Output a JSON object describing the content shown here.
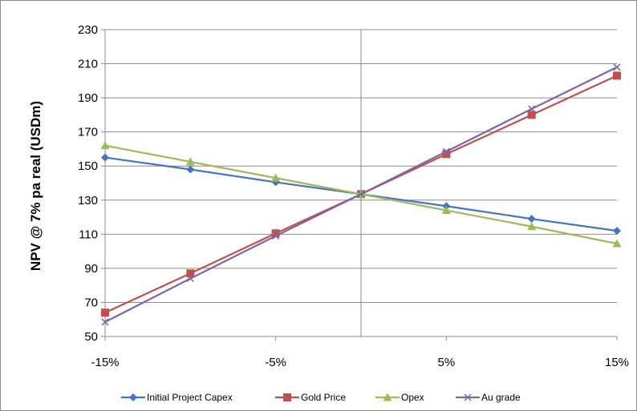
{
  "chart_data": {
    "type": "line",
    "title": "",
    "xlabel": "",
    "ylabel": "NPV @ 7% pa  real (USDm)",
    "x": [
      -15,
      -10,
      -5,
      0,
      5,
      10,
      15
    ],
    "x_tick_labels": [
      "-15%",
      "-5%",
      "5%",
      "15%"
    ],
    "x_tick_values": [
      -15,
      -5,
      5,
      15
    ],
    "xlim": [
      -15,
      15
    ],
    "ylim": [
      50,
      230
    ],
    "y_ticks": [
      50,
      70,
      90,
      110,
      130,
      150,
      170,
      190,
      210,
      230
    ],
    "grid": "horizontal",
    "legend_position": "bottom",
    "series": [
      {
        "name": "Initial Project Capex",
        "color": "#4472C4",
        "marker": "diamond",
        "values": [
          155,
          148,
          140.5,
          133.5,
          126.5,
          119,
          112
        ]
      },
      {
        "name": "Gold Price",
        "color": "#C0504D",
        "marker": "square",
        "values": [
          64,
          87,
          110.5,
          133.5,
          157,
          180,
          203
        ]
      },
      {
        "name": "Opex",
        "color": "#9BBB59",
        "marker": "triangle",
        "values": [
          162,
          152.5,
          143,
          133.5,
          124,
          114.5,
          104.5
        ]
      },
      {
        "name": "Au grade",
        "color": "#8064A2",
        "marker": "x",
        "values": [
          58.5,
          84,
          109,
          133.5,
          158.5,
          183.5,
          208
        ]
      }
    ]
  }
}
